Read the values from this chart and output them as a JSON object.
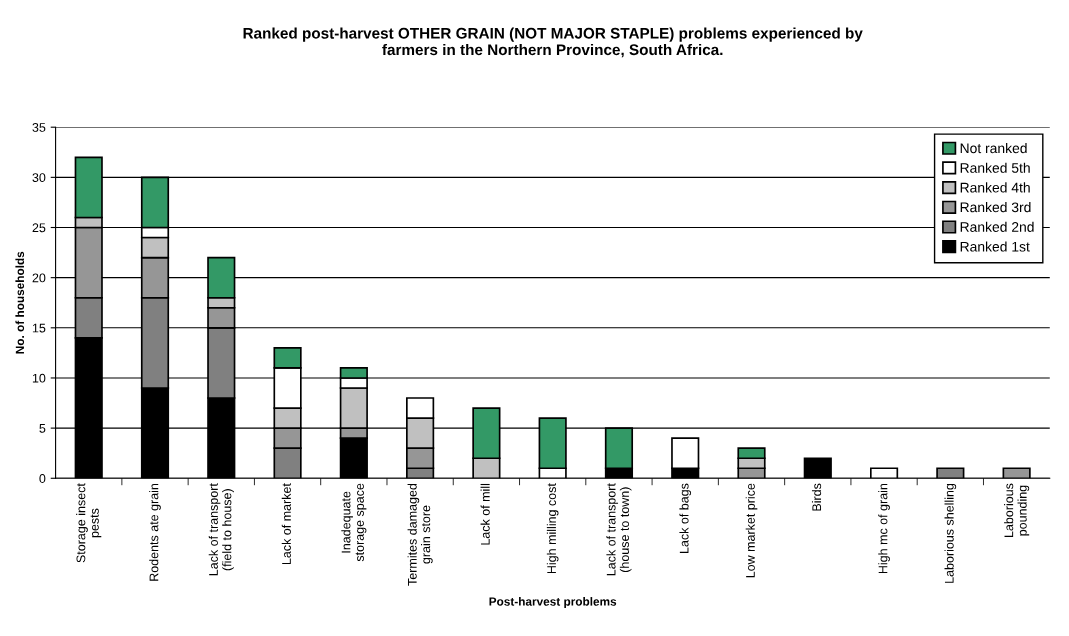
{
  "chart_data": {
    "type": "bar",
    "stacked": true,
    "title": "Ranked post-harvest OTHER GRAIN (NOT MAJOR STAPLE) problems experienced by\nfarmers in the Northern Province, South Africa.",
    "xlabel": "Post-harvest problems",
    "ylabel": "No. of households",
    "categories": [
      "Storage insect\npests",
      "Rodents ate grain",
      "Lack of transport\n(field to house)",
      "Lack of market",
      "Inadequate\nstorage space",
      "Termites damaged\ngrain store",
      "Lack of mill",
      "High milling cost",
      "Lack of transport\n(house to town)",
      "Lack of bags",
      "Low market price",
      "Birds",
      "High mc of grain",
      "Laborious shelling",
      "Laborious\npounding"
    ],
    "series": [
      {
        "name": "Ranked 1st",
        "color": "#000000",
        "values": [
          14,
          9,
          8,
          0,
          4,
          0,
          0,
          0,
          1,
          1,
          0,
          2,
          0,
          0,
          0
        ]
      },
      {
        "name": "Ranked 2nd",
        "color": "#808080",
        "values": [
          4,
          9,
          7,
          3,
          0,
          1,
          0,
          0,
          0,
          0,
          0,
          0,
          0,
          1,
          0
        ]
      },
      {
        "name": "Ranked 3rd",
        "color": "#969696",
        "values": [
          7,
          4,
          2,
          2,
          1,
          2,
          0,
          0,
          0,
          0,
          1,
          0,
          0,
          0,
          1
        ]
      },
      {
        "name": "Ranked 4th",
        "color": "#c0c0c0",
        "values": [
          1,
          2,
          1,
          2,
          4,
          3,
          2,
          0,
          0,
          0,
          1,
          0,
          0,
          0,
          0
        ]
      },
      {
        "name": "Ranked 5th",
        "color": "#ffffff",
        "values": [
          0,
          1,
          0,
          4,
          1,
          2,
          0,
          1,
          0,
          3,
          0,
          0,
          1,
          0,
          0
        ]
      },
      {
        "name": "Not ranked",
        "color": "#339966",
        "values": [
          6,
          5,
          4,
          2,
          1,
          0,
          5,
          5,
          4,
          0,
          1,
          0,
          0,
          0,
          0
        ]
      }
    ],
    "ylim": [
      0,
      35
    ],
    "yticks": [
      0,
      5,
      10,
      15,
      20,
      25,
      30,
      35
    ],
    "grid": "y",
    "legend": "top right"
  }
}
